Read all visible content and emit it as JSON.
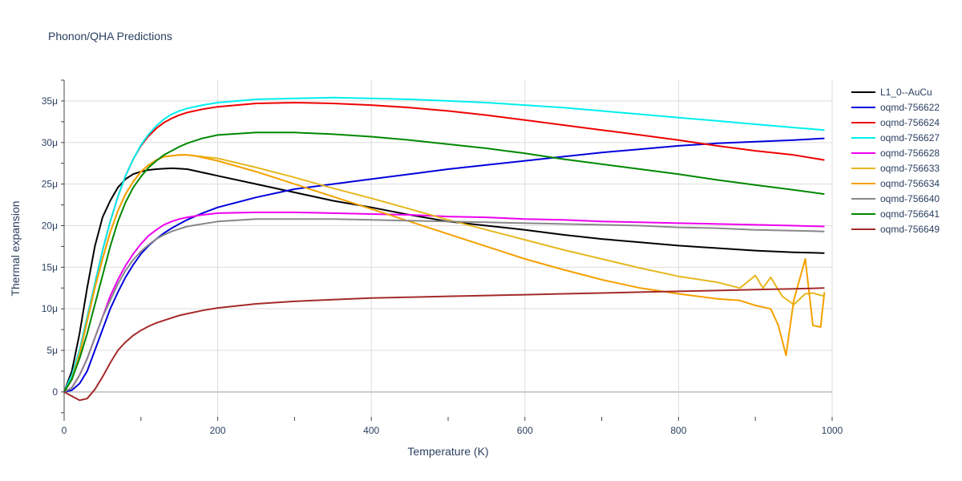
{
  "chart_data": {
    "type": "line",
    "title": "Phonon/QHA Predictions",
    "xlabel": "Temperature (K)",
    "ylabel": "Thermal expansion",
    "xlim": [
      0,
      1000
    ],
    "ylim": [
      -3,
      37.5
    ],
    "x_ticks": [
      {
        "value": 0,
        "label": "0"
      },
      {
        "value": 200,
        "label": "200"
      },
      {
        "value": 400,
        "label": "400"
      },
      {
        "value": 600,
        "label": "600"
      },
      {
        "value": 800,
        "label": "800"
      },
      {
        "value": 1000,
        "label": "1000"
      }
    ],
    "y_ticks": [
      {
        "value": 0,
        "label": "0"
      },
      {
        "value": 5,
        "label": "5μ"
      },
      {
        "value": 10,
        "label": "10μ"
      },
      {
        "value": 15,
        "label": "15μ"
      },
      {
        "value": 20,
        "label": "20μ"
      },
      {
        "value": 25,
        "label": "25μ"
      },
      {
        "value": 30,
        "label": "30μ"
      },
      {
        "value": 35,
        "label": "35μ"
      }
    ],
    "grid": true,
    "legend_position": "top-right",
    "series": [
      {
        "name": "L1_0--AuCu",
        "color": "#000000",
        "x": [
          0,
          10,
          20,
          30,
          40,
          50,
          60,
          70,
          80,
          90,
          100,
          110,
          120,
          130,
          140,
          150,
          160,
          170,
          180,
          200,
          250,
          300,
          350,
          400,
          450,
          500,
          550,
          600,
          650,
          700,
          750,
          800,
          850,
          900,
          950,
          990
        ],
        "y": [
          0,
          2.5,
          7,
          12.5,
          17.5,
          21,
          23,
          24.6,
          25.6,
          26.2,
          26.5,
          26.7,
          26.8,
          26.85,
          26.9,
          26.85,
          26.8,
          26.6,
          26.4,
          26.0,
          25.0,
          24.0,
          23.0,
          22.2,
          21.3,
          20.5,
          20.0,
          19.5,
          18.9,
          18.4,
          18.0,
          17.6,
          17.3,
          17.0,
          16.8,
          16.7
        ]
      },
      {
        "name": "oqmd-756622",
        "color": "#0000dd",
        "x": [
          0,
          10,
          20,
          30,
          40,
          50,
          60,
          70,
          80,
          90,
          100,
          110,
          120,
          130,
          140,
          150,
          160,
          180,
          200,
          250,
          300,
          350,
          400,
          450,
          500,
          550,
          600,
          650,
          700,
          750,
          800,
          850,
          900,
          950,
          990
        ],
        "y": [
          0,
          0.2,
          1,
          2.5,
          5,
          7.5,
          10,
          12,
          13.8,
          15.3,
          16.6,
          17.6,
          18.4,
          19.1,
          19.7,
          20.2,
          20.7,
          21.5,
          22.2,
          23.4,
          24.4,
          25.0,
          25.6,
          26.2,
          26.8,
          27.3,
          27.8,
          28.3,
          28.8,
          29.2,
          29.6,
          29.9,
          30.1,
          30.3,
          30.5
        ]
      },
      {
        "name": "oqmd-756624",
        "color": "#ee0000",
        "x": [
          0,
          10,
          20,
          30,
          40,
          50,
          60,
          70,
          80,
          90,
          100,
          110,
          120,
          130,
          140,
          150,
          160,
          180,
          200,
          250,
          300,
          350,
          400,
          450,
          500,
          550,
          600,
          650,
          700,
          750,
          800,
          850,
          900,
          950,
          990
        ],
        "y": [
          0,
          2,
          5,
          9,
          13,
          17,
          20.5,
          23.5,
          26,
          28,
          29.6,
          30.8,
          31.7,
          32.4,
          32.9,
          33.3,
          33.6,
          34.0,
          34.3,
          34.7,
          34.8,
          34.7,
          34.5,
          34.2,
          33.8,
          33.3,
          32.7,
          32.1,
          31.5,
          30.9,
          30.3,
          29.6,
          29.0,
          28.5,
          27.9
        ]
      },
      {
        "name": "oqmd-756627",
        "color": "#00eeee",
        "x": [
          0,
          10,
          20,
          30,
          40,
          50,
          60,
          70,
          80,
          90,
          100,
          110,
          120,
          130,
          140,
          150,
          160,
          180,
          200,
          250,
          300,
          350,
          400,
          450,
          500,
          550,
          600,
          650,
          700,
          750,
          800,
          850,
          900,
          950,
          990
        ],
        "y": [
          0,
          2,
          5,
          9,
          13,
          17,
          20.5,
          23.5,
          26,
          28,
          29.7,
          31,
          32,
          32.8,
          33.4,
          33.8,
          34.1,
          34.5,
          34.8,
          35.2,
          35.3,
          35.4,
          35.3,
          35.2,
          35.0,
          34.8,
          34.5,
          34.2,
          33.8,
          33.4,
          33.0,
          32.6,
          32.2,
          31.8,
          31.5
        ]
      },
      {
        "name": "oqmd-756628",
        "color": "#ee00ee",
        "x": [
          0,
          10,
          20,
          30,
          40,
          50,
          60,
          70,
          80,
          90,
          100,
          110,
          120,
          130,
          140,
          150,
          160,
          180,
          200,
          250,
          300,
          350,
          400,
          450,
          500,
          550,
          600,
          650,
          700,
          750,
          800,
          850,
          900,
          950,
          990
        ],
        "y": [
          0,
          0.5,
          2,
          4,
          6.5,
          9,
          11.5,
          13.5,
          15.2,
          16.6,
          17.8,
          18.8,
          19.5,
          20.1,
          20.5,
          20.8,
          21.0,
          21.3,
          21.5,
          21.6,
          21.6,
          21.5,
          21.4,
          21.3,
          21.1,
          21.0,
          20.8,
          20.7,
          20.5,
          20.4,
          20.3,
          20.2,
          20.1,
          20.0,
          19.9
        ]
      },
      {
        "name": "oqmd-756633",
        "color": "#e6b820",
        "x": [
          0,
          10,
          20,
          30,
          40,
          50,
          60,
          70,
          80,
          90,
          100,
          110,
          120,
          130,
          140,
          150,
          160,
          170,
          180,
          200,
          250,
          300,
          350,
          400,
          450,
          500,
          550,
          600,
          650,
          700,
          750,
          800,
          850,
          880,
          900,
          910,
          920,
          935,
          950,
          965,
          975,
          990
        ],
        "y": [
          0,
          1.5,
          4.5,
          8.5,
          12.5,
          16,
          19.2,
          21.8,
          23.8,
          25.3,
          26.5,
          27.3,
          27.9,
          28.3,
          28.4,
          28.5,
          28.5,
          28.4,
          28.3,
          28.1,
          27.0,
          25.8,
          24.5,
          23.3,
          22.0,
          20.7,
          19.5,
          18.3,
          17.1,
          16.0,
          14.9,
          13.9,
          13.2,
          12.5,
          14.0,
          12.5,
          13.8,
          11.5,
          10.5,
          11.8,
          11.9,
          11.5
        ]
      },
      {
        "name": "oqmd-756634",
        "color": "#f5a000",
        "x": [
          0,
          10,
          20,
          30,
          40,
          50,
          60,
          70,
          80,
          90,
          100,
          110,
          120,
          130,
          140,
          150,
          160,
          170,
          180,
          200,
          250,
          300,
          350,
          400,
          450,
          500,
          550,
          600,
          650,
          700,
          750,
          800,
          850,
          880,
          900,
          920,
          930,
          940,
          950,
          965,
          975,
          985,
          990
        ],
        "y": [
          0,
          1.5,
          4.5,
          8.5,
          12.5,
          16,
          19.2,
          21.8,
          23.8,
          25.3,
          26.5,
          27.3,
          27.9,
          28.3,
          28.4,
          28.5,
          28.5,
          28.4,
          28.2,
          27.8,
          26.5,
          25.0,
          23.5,
          22.0,
          20.5,
          19.0,
          17.5,
          16.0,
          14.7,
          13.5,
          12.5,
          11.8,
          11.2,
          11.0,
          10.4,
          10.0,
          8.0,
          4.4,
          11.0,
          16.0,
          8.0,
          7.8,
          12.0
        ]
      },
      {
        "name": "oqmd-756640",
        "color": "#888888",
        "x": [
          0,
          10,
          20,
          30,
          40,
          50,
          60,
          70,
          80,
          90,
          100,
          110,
          120,
          130,
          140,
          150,
          160,
          180,
          200,
          250,
          300,
          350,
          400,
          450,
          500,
          550,
          600,
          650,
          700,
          750,
          800,
          850,
          900,
          950,
          990
        ],
        "y": [
          0,
          0.5,
          2,
          4,
          6.5,
          9,
          11,
          13,
          14.6,
          15.9,
          16.9,
          17.7,
          18.4,
          18.9,
          19.3,
          19.6,
          19.9,
          20.2,
          20.5,
          20.8,
          20.8,
          20.8,
          20.7,
          20.6,
          20.5,
          20.4,
          20.3,
          20.2,
          20.1,
          20.0,
          19.8,
          19.7,
          19.5,
          19.4,
          19.3
        ]
      },
      {
        "name": "oqmd-756641",
        "color": "#008800",
        "x": [
          0,
          10,
          20,
          30,
          40,
          50,
          60,
          70,
          80,
          90,
          100,
          110,
          120,
          130,
          140,
          150,
          160,
          180,
          200,
          250,
          300,
          350,
          400,
          450,
          500,
          550,
          600,
          650,
          700,
          750,
          800,
          850,
          900,
          950,
          990
        ],
        "y": [
          0,
          1.5,
          4,
          7,
          10.5,
          14,
          17.5,
          20.5,
          22.8,
          24.6,
          25.9,
          27.0,
          27.8,
          28.5,
          29.0,
          29.5,
          29.9,
          30.5,
          30.9,
          31.2,
          31.2,
          31.0,
          30.7,
          30.3,
          29.8,
          29.3,
          28.7,
          28.0,
          27.4,
          26.8,
          26.2,
          25.5,
          24.9,
          24.3,
          23.8
        ]
      },
      {
        "name": "oqmd-756649",
        "color": "#a52a2a",
        "x": [
          0,
          10,
          20,
          30,
          40,
          50,
          60,
          70,
          80,
          90,
          100,
          110,
          120,
          130,
          140,
          150,
          160,
          180,
          200,
          250,
          300,
          350,
          400,
          450,
          500,
          550,
          600,
          650,
          700,
          750,
          800,
          850,
          900,
          950,
          990
        ],
        "y": [
          0,
          -0.5,
          -1,
          -0.8,
          0.3,
          1.8,
          3.5,
          5.0,
          6.0,
          6.8,
          7.4,
          7.9,
          8.3,
          8.6,
          8.9,
          9.2,
          9.4,
          9.8,
          10.1,
          10.6,
          10.9,
          11.1,
          11.3,
          11.4,
          11.5,
          11.6,
          11.7,
          11.8,
          11.9,
          12.0,
          12.1,
          12.2,
          12.3,
          12.4,
          12.5
        ]
      }
    ]
  }
}
